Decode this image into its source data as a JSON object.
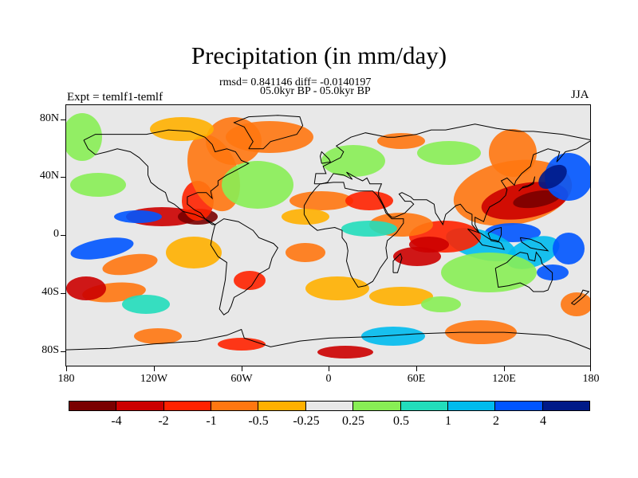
{
  "title": "Precipitation (in mm/day)",
  "stats_line": "rmsd= 0.841146 diff= -0.0140197",
  "period_line": "05.0kyr BP - 05.0kyr BP",
  "experiment_label": "Expt = temlf1-temlf",
  "season_label": "JJA",
  "axes": {
    "y_ticks": [
      "80N",
      "40N",
      "0",
      "40S",
      "80S"
    ],
    "x_ticks": [
      "180",
      "120W",
      "60W",
      "0",
      "60E",
      "120E",
      "180"
    ]
  },
  "colorbar": {
    "colors": [
      "#7a0000",
      "#cc0000",
      "#ff2200",
      "#ff7711",
      "#ffb000",
      "#e8e8e8",
      "#88ee55",
      "#22ddbb",
      "#00bbee",
      "#0055ff",
      "#001a88"
    ],
    "labels": [
      "-4",
      "-2",
      "-1",
      "-0.5",
      "-0.25",
      "0.25",
      "0.5",
      "1",
      "2",
      "4"
    ]
  },
  "map_features": {
    "coastline_color": "#000000",
    "background_color": "#e8e8e8"
  }
}
